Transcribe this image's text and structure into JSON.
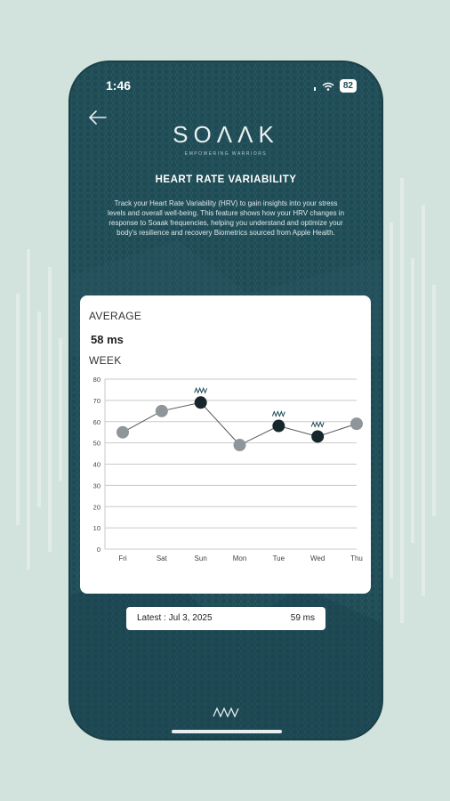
{
  "status_bar": {
    "time": "1:46",
    "battery": "82"
  },
  "brand": {
    "name": "SOΛΛK",
    "tagline": "EMPOWERING WARRIORS"
  },
  "header": {
    "title": "HEART RATE VARIABILITY",
    "description": "Track your Heart Rate Variability (HRV) to gain insights into your stress levels and overall well-being. This feature shows how your HRV changes in response to Soaak frequencies, helping you understand and optimize your body's resilience and recovery Biometrics sourced from Apple Health."
  },
  "card": {
    "average_label": "AVERAGE",
    "average_value": "58 ms",
    "period_label": "WEEK"
  },
  "chart_data": {
    "type": "line",
    "categories": [
      "Fri",
      "Sat",
      "Sun",
      "Mon",
      "Tue",
      "Wed",
      "Thu"
    ],
    "values": [
      55,
      65,
      69,
      49,
      58,
      53,
      59
    ],
    "soaak_session_days": [
      "Sun",
      "Tue",
      "Wed"
    ],
    "ylim": [
      0,
      80
    ],
    "yticks": [
      0,
      10,
      20,
      30,
      40,
      50,
      60,
      70,
      80
    ],
    "grid": true,
    "colors": {
      "normal_point": "#8f9699",
      "session_point": "#17262a",
      "line": "#555555",
      "session_marker": "#1f4b55"
    }
  },
  "latest": {
    "label": "Latest : Jul 3, 2025",
    "value": "59 ms"
  },
  "colors": {
    "phone_bg": "#1f4b55",
    "page_bg": "#d2e2dc",
    "card_bg": "#ffffff"
  }
}
